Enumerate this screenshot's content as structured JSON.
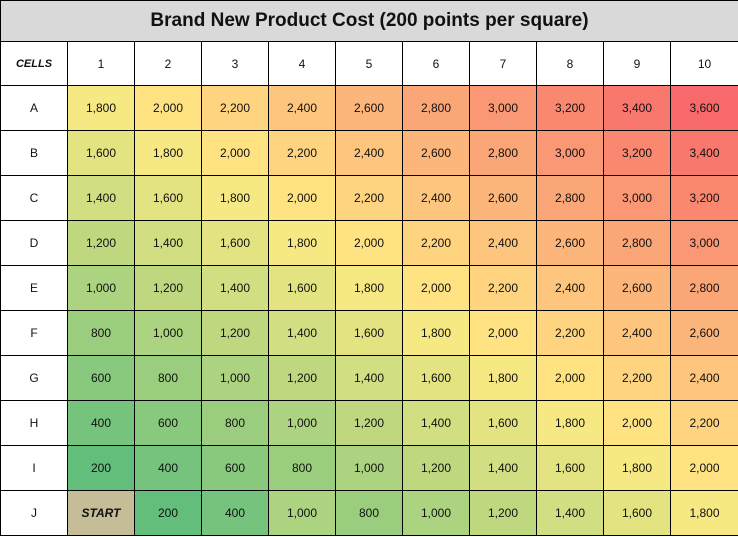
{
  "sheet": {
    "title": "Brand New Product Cost (200 points per square)",
    "corner_label": "CELLS",
    "columns": [
      "1",
      "2",
      "3",
      "4",
      "5",
      "6",
      "7",
      "8",
      "9",
      "10"
    ],
    "rows": [
      {
        "label": "A",
        "values": [
          "1,800",
          "2,000",
          "2,200",
          "2,400",
          "2,600",
          "2,800",
          "3,000",
          "3,200",
          "3,400",
          "3,600"
        ]
      },
      {
        "label": "B",
        "values": [
          "1,600",
          "1,800",
          "2,000",
          "2,200",
          "2,400",
          "2,600",
          "2,800",
          "3,000",
          "3,200",
          "3,400"
        ]
      },
      {
        "label": "C",
        "values": [
          "1,400",
          "1,600",
          "1,800",
          "2,000",
          "2,200",
          "2,400",
          "2,600",
          "2,800",
          "3,000",
          "3,200"
        ]
      },
      {
        "label": "D",
        "values": [
          "1,200",
          "1,400",
          "1,600",
          "1,800",
          "2,000",
          "2,200",
          "2,400",
          "2,600",
          "2,800",
          "3,000"
        ]
      },
      {
        "label": "E",
        "values": [
          "1,000",
          "1,200",
          "1,400",
          "1,600",
          "1,800",
          "2,000",
          "2,200",
          "2,400",
          "2,600",
          "2,800"
        ]
      },
      {
        "label": "F",
        "values": [
          "800",
          "1,000",
          "1,200",
          "1,400",
          "1,600",
          "1,800",
          "2,000",
          "2,200",
          "2,400",
          "2,600"
        ]
      },
      {
        "label": "G",
        "values": [
          "600",
          "800",
          "1,000",
          "1,200",
          "1,400",
          "1,600",
          "1,800",
          "2,000",
          "2,200",
          "2,400"
        ]
      },
      {
        "label": "H",
        "values": [
          "400",
          "600",
          "800",
          "1,000",
          "1,200",
          "1,400",
          "1,600",
          "1,800",
          "2,000",
          "2,200"
        ]
      },
      {
        "label": "I",
        "values": [
          "200",
          "400",
          "600",
          "800",
          "1,000",
          "1,200",
          "1,400",
          "1,600",
          "1,800",
          "2,000"
        ]
      },
      {
        "label": "J",
        "values": [
          "START",
          "200",
          "400",
          "1,000",
          "800",
          "1,000",
          "1,200",
          "1,400",
          "1,600",
          "1,800"
        ]
      }
    ],
    "start_color": "#c4bd97",
    "scale_colors": {
      "low": "#63be7b",
      "mid": "#ffeb84",
      "high": "#f8696b"
    }
  }
}
